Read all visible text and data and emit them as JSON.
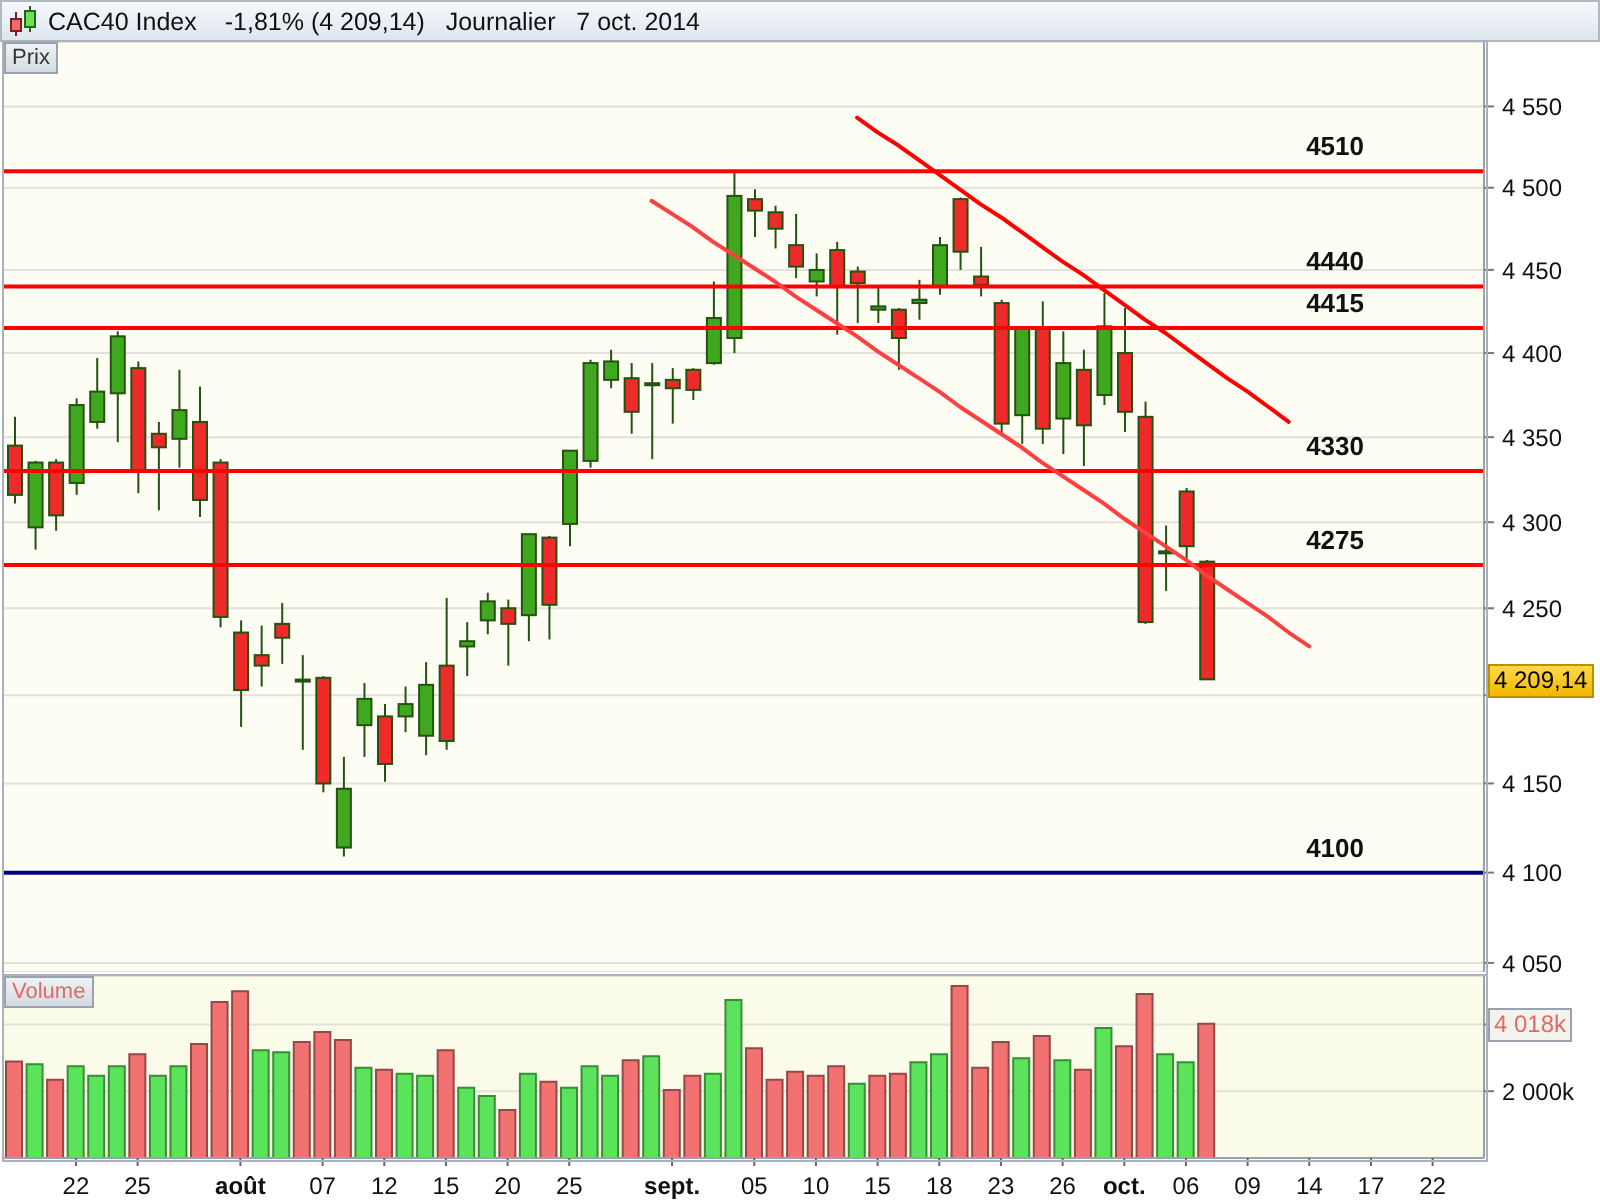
{
  "chart_data": [
    {
      "type": "candlestick",
      "title": "CAC40 Index",
      "subtitle": "-1,81% (4 209,14)   Journalier   7 oct. 2014",
      "ylabel": "Prix",
      "categories": [
        null,
        null,
        null,
        null,
        null,
        null,
        null,
        null,
        null,
        null,
        null,
        null,
        null,
        null,
        null,
        null,
        null,
        null,
        null,
        null,
        null,
        null,
        null,
        null,
        null,
        null,
        null,
        null,
        null,
        null,
        null,
        null,
        null,
        null,
        null,
        null,
        null,
        null,
        null,
        null,
        null,
        null,
        null,
        null,
        null,
        null,
        null,
        null,
        null,
        null,
        null,
        null,
        null,
        null,
        null,
        null,
        null,
        null,
        null,
        null,
        null,
        null,
        null,
        null,
        null,
        null,
        null,
        null,
        null,
        null,
        null,
        null
      ],
      "ohlc": [
        [
          4345,
          4362,
          4311,
          4316
        ],
        [
          4297,
          4336,
          4284,
          4335
        ],
        [
          4335,
          4337,
          4295,
          4304
        ],
        [
          4323,
          4373,
          4316,
          4369
        ],
        [
          4359,
          4397,
          4355,
          4377
        ],
        [
          4376,
          4413,
          4347,
          4410
        ],
        [
          4391,
          4395,
          4317,
          4330
        ],
        [
          4352,
          4359,
          4307,
          4344
        ],
        [
          4349,
          4390,
          4332,
          4366
        ],
        [
          4359,
          4380,
          4303,
          4313
        ],
        [
          4335,
          4337,
          4239,
          4245
        ],
        [
          4236,
          4243,
          4182,
          4203
        ],
        [
          4223,
          4240,
          4205,
          4217
        ],
        [
          4241,
          4253,
          4218,
          4233
        ],
        [
          4208,
          4223,
          4169,
          4209
        ],
        [
          4210,
          4211,
          4145,
          4150
        ],
        [
          4114,
          4165,
          4109,
          4147
        ],
        [
          4183,
          4207,
          4165,
          4198
        ],
        [
          4188,
          4195,
          4151,
          4161
        ],
        [
          4188,
          4205,
          4179,
          4195
        ],
        [
          4177,
          4219,
          4166,
          4206
        ],
        [
          4217,
          4256,
          4169,
          4174
        ],
        [
          4228,
          4242,
          4211,
          4231
        ],
        [
          4243,
          4259,
          4235,
          4254
        ],
        [
          4250,
          4255,
          4217,
          4241
        ],
        [
          4246,
          4293,
          4231,
          4293
        ],
        [
          4291,
          4292,
          4232,
          4252
        ],
        [
          4299,
          4342,
          4286,
          4342
        ],
        [
          4336,
          4396,
          4332,
          4394
        ],
        [
          4384,
          4402,
          4379,
          4395
        ],
        [
          4385,
          4394,
          4352,
          4365
        ],
        [
          4381,
          4394,
          4337,
          4382
        ],
        [
          4384,
          4391,
          4358,
          4379
        ],
        [
          4390,
          4391,
          4372,
          4378
        ],
        [
          4394,
          4443,
          4393,
          4421
        ],
        [
          4409,
          4509,
          4400,
          4495
        ],
        [
          4493,
          4499,
          4470,
          4486
        ],
        [
          4485,
          4489,
          4463,
          4475
        ],
        [
          4465,
          4484,
          4445,
          4452
        ],
        [
          4443,
          4460,
          4434,
          4450
        ],
        [
          4462,
          4467,
          4411,
          4440
        ],
        [
          4449,
          4452,
          4418,
          4442
        ],
        [
          4426,
          4440,
          4418,
          4428
        ],
        [
          4426,
          4427,
          4390,
          4409
        ],
        [
          4430,
          4444,
          4420,
          4432
        ],
        [
          4440,
          4470,
          4435,
          4465
        ],
        [
          4493,
          4494,
          4450,
          4461
        ],
        [
          4446,
          4464,
          4434,
          4441
        ],
        [
          4430,
          4432,
          4351,
          4358
        ],
        [
          4363,
          4416,
          4346,
          4415
        ],
        [
          4415,
          4431,
          4346,
          4355
        ],
        [
          4361,
          4413,
          4340,
          4394
        ],
        [
          4390,
          4402,
          4333,
          4357
        ],
        [
          4375,
          4436,
          4369,
          4416
        ],
        [
          4400,
          4427,
          4353,
          4365
        ],
        [
          4362,
          4371,
          4241,
          4242
        ],
        [
          4282,
          4298,
          4260,
          4283
        ],
        [
          4318,
          4320,
          4278,
          4286
        ],
        [
          4277,
          4278,
          4209,
          4209.14
        ],
        null,
        null,
        null,
        null,
        null,
        null,
        null,
        null,
        null,
        null,
        null,
        null,
        null
      ],
      "series": [
        {
          "type": "line",
          "color": "#ff0000",
          "values": [
            null,
            null,
            null,
            null,
            null,
            null,
            null,
            null,
            null,
            null,
            null,
            null,
            null,
            null,
            null,
            null,
            null,
            null,
            null,
            null,
            null,
            null,
            null,
            null,
            null,
            null,
            null,
            null,
            null,
            null,
            null,
            null,
            null,
            null,
            null,
            null,
            null,
            null,
            null,
            null,
            null,
            4543,
            4534,
            4526,
            4517,
            4508,
            4499,
            4490,
            4482,
            4473,
            4464,
            4455,
            4447,
            4438,
            4429,
            4420,
            4412,
            4403,
            4394,
            4385,
            4377,
            4368,
            4359,
            null,
            null,
            null,
            null,
            null,
            null,
            null,
            null,
            null
          ]
        },
        {
          "type": "line",
          "color": "#ff4040",
          "values": [
            null,
            null,
            null,
            null,
            null,
            null,
            null,
            null,
            null,
            null,
            null,
            null,
            null,
            null,
            null,
            null,
            null,
            null,
            null,
            null,
            null,
            null,
            null,
            null,
            null,
            null,
            null,
            null,
            null,
            null,
            null,
            4492,
            4484,
            4476,
            4467,
            4459,
            4451,
            4443,
            4434,
            4426,
            4418,
            4410,
            4401,
            4393,
            4385,
            4377,
            4368,
            4360,
            4352,
            4344,
            4335,
            4327,
            4319,
            4311,
            4302,
            4294,
            4286,
            4278,
            4269,
            4261,
            4253,
            4245,
            4236,
            4228,
            null,
            null,
            null,
            null,
            null,
            null,
            null,
            null
          ]
        }
      ],
      "log": true,
      "ylim": [
        4045,
        4590
      ],
      "yticks": [
        {
          "value": 4050,
          "label": "4 050"
        },
        {
          "value": 4100,
          "label": "4 100"
        },
        {
          "value": 4150,
          "label": "4 150"
        },
        {
          "value": 4200,
          "label": null
        },
        {
          "value": 4250,
          "label": "4 250"
        },
        {
          "value": 4300,
          "label": "4 300"
        },
        {
          "value": 4350,
          "label": "4 350"
        },
        {
          "value": 4400,
          "label": "4 400"
        },
        {
          "value": 4450,
          "label": "4 450"
        },
        {
          "value": 4500,
          "label": "4 500"
        },
        {
          "value": 4550,
          "label": "4 550"
        }
      ],
      "grid": "y",
      "tick_labels": "y",
      "ref_lines": [
        {
          "axis": "y",
          "value": 4510,
          "label": "4510",
          "color": "#ff0000"
        },
        {
          "axis": "y",
          "value": 4440,
          "label": "4440",
          "color": "#ff0000"
        },
        {
          "axis": "y",
          "value": 4415,
          "label": "4415",
          "color": "#ff0000"
        },
        {
          "axis": "y",
          "value": 4330,
          "label": "4330",
          "color": "#ff0000"
        },
        {
          "axis": "y",
          "value": 4275,
          "label": "4275",
          "color": "#ff0000"
        },
        {
          "axis": "y",
          "value": 4100,
          "label": "4100",
          "color": "#000080"
        }
      ],
      "annotations": [
        "4 209,14"
      ]
    },
    {
      "type": "bar",
      "ylabel": "Volume",
      "categories": [
        null,
        null,
        null,
        "22",
        null,
        null,
        "25",
        null,
        null,
        null,
        null,
        "août",
        null,
        null,
        null,
        "07",
        null,
        null,
        "12",
        null,
        null,
        "15",
        null,
        null,
        "20",
        null,
        null,
        "25",
        null,
        null,
        null,
        null,
        "sept.",
        null,
        null,
        null,
        "05",
        null,
        null,
        "10",
        null,
        null,
        "15",
        null,
        null,
        "18",
        null,
        null,
        "23",
        null,
        null,
        "26",
        null,
        null,
        "oct.",
        null,
        null,
        "06",
        null,
        null,
        "09",
        null,
        null,
        "14",
        null,
        null,
        "17",
        null,
        null,
        "22",
        null,
        null
      ],
      "values": [
        2890,
        2810,
        2340,
        2750,
        2460,
        2750,
        3110,
        2460,
        2750,
        3410,
        4670,
        4990,
        3230,
        3170,
        3470,
        3770,
        3530,
        2700,
        2640,
        2520,
        2460,
        3230,
        2100,
        1860,
        1440,
        2520,
        2280,
        2100,
        2750,
        2460,
        2930,
        3050,
        2040,
        2460,
        2520,
        4730,
        3290,
        2340,
        2580,
        2460,
        2750,
        2220,
        2460,
        2520,
        2870,
        3110,
        5150,
        2700,
        3470,
        2990,
        3650,
        2930,
        2640,
        3890,
        3350,
        4910,
        3110,
        2870,
        4018,
        null,
        null,
        null,
        null,
        null,
        null,
        null,
        null,
        null,
        null,
        null,
        null,
        null
      ],
      "colors": [
        "#f27272",
        "#5ce35c",
        "#f27272",
        "#5ce35c",
        "#5ce35c",
        "#5ce35c",
        "#f27272",
        "#5ce35c",
        "#5ce35c",
        "#f27272",
        "#f27272",
        "#f27272",
        "#5ce35c",
        "#5ce35c",
        "#f27272",
        "#f27272",
        "#f27272",
        "#5ce35c",
        "#f27272",
        "#5ce35c",
        "#5ce35c",
        "#f27272",
        "#5ce35c",
        "#5ce35c",
        "#f27272",
        "#5ce35c",
        "#f27272",
        "#5ce35c",
        "#5ce35c",
        "#5ce35c",
        "#f27272",
        "#5ce35c",
        "#f27272",
        "#f27272",
        "#5ce35c",
        "#5ce35c",
        "#f27272",
        "#f27272",
        "#f27272",
        "#f27272",
        "#f27272",
        "#5ce35c",
        "#f27272",
        "#f27272",
        "#5ce35c",
        "#5ce35c",
        "#f27272",
        "#f27272",
        "#f27272",
        "#5ce35c",
        "#f27272",
        "#5ce35c",
        "#f27272",
        "#5ce35c",
        "#f27272",
        "#f27272",
        "#5ce35c",
        "#5ce35c",
        "#f27272",
        null,
        null,
        null,
        null,
        null,
        null,
        null,
        null,
        null,
        null,
        null,
        null,
        null
      ],
      "ylim": [
        0,
        5450
      ],
      "yticks": [
        {
          "value": 2000,
          "label": "2 000k"
        },
        {
          "value": 4000,
          "label": null
        }
      ],
      "grid": "y",
      "annotations": [
        "4 018k"
      ]
    }
  ]
}
